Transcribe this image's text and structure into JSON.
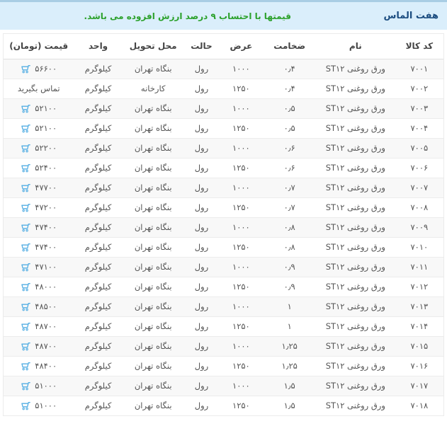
{
  "header": {
    "brand": "هفت الماس",
    "notice": "قیمتها با احتساب ۹ درصد ارزش افزوده می باشد."
  },
  "colors": {
    "topbar_bg": "#daeefb",
    "topbar_border": "#a9cde4",
    "brand_text": "#1c4d80",
    "notice_text": "#2ba12b",
    "cart_icon": "#54aee3",
    "stripe_row": "#f8f8f8"
  },
  "icons": {
    "cart": "cart-icon"
  },
  "table": {
    "columns": [
      {
        "key": "code",
        "label": "کد کالا"
      },
      {
        "key": "name",
        "label": "نام"
      },
      {
        "key": "thickness",
        "label": "ضخامت"
      },
      {
        "key": "width",
        "label": "عرض"
      },
      {
        "key": "state",
        "label": "حالت"
      },
      {
        "key": "delivery",
        "label": "محل تحویل"
      },
      {
        "key": "unit",
        "label": "واحد"
      },
      {
        "key": "price",
        "label": "قیمت (تومان)"
      }
    ],
    "rows": [
      {
        "code": "۷۰۰۱",
        "name": "ورق روغنی ST۱۲",
        "thickness": "۰٫۴",
        "width": "۱۰۰۰",
        "state": "رول",
        "delivery": "بنگاه تهران",
        "unit": "کیلوگرم",
        "price": "۵۶۶۰۰",
        "has_cart": true
      },
      {
        "code": "۷۰۰۲",
        "name": "ورق روغنی ST۱۲",
        "thickness": "۰٫۴",
        "width": "۱۲۵۰",
        "state": "رول",
        "delivery": "کارخانه",
        "unit": "کیلوگرم",
        "price": "تماس بگیرید",
        "has_cart": false
      },
      {
        "code": "۷۰۰۳",
        "name": "ورق روغنی ST۱۲",
        "thickness": "۰٫۵",
        "width": "۱۰۰۰",
        "state": "رول",
        "delivery": "بنگاه تهران",
        "unit": "کیلوگرم",
        "price": "۵۲۱۰۰",
        "has_cart": true
      },
      {
        "code": "۷۰۰۴",
        "name": "ورق روغنی ST۱۲",
        "thickness": "۰٫۵",
        "width": "۱۲۵۰",
        "state": "رول",
        "delivery": "بنگاه تهران",
        "unit": "کیلوگرم",
        "price": "۵۲۱۰۰",
        "has_cart": true
      },
      {
        "code": "۷۰۰۵",
        "name": "ورق روغنی ST۱۲",
        "thickness": "۰٫۶",
        "width": "۱۰۰۰",
        "state": "رول",
        "delivery": "بنگاه تهران",
        "unit": "کیلوگرم",
        "price": "۵۲۲۰۰",
        "has_cart": true
      },
      {
        "code": "۷۰۰۶",
        "name": "ورق روغنی ST۱۲",
        "thickness": "۰٫۶",
        "width": "۱۲۵۰",
        "state": "رول",
        "delivery": "بنگاه تهران",
        "unit": "کیلوگرم",
        "price": "۵۲۴۰۰",
        "has_cart": true
      },
      {
        "code": "۷۰۰۷",
        "name": "ورق روغنی ST۱۲",
        "thickness": "۰٫۷",
        "width": "۱۰۰۰",
        "state": "رول",
        "delivery": "بنگاه تهران",
        "unit": "کیلوگرم",
        "price": "۴۷۷۰۰",
        "has_cart": true
      },
      {
        "code": "۷۰۰۸",
        "name": "ورق روغنی ST۱۲",
        "thickness": "۰٫۷",
        "width": "۱۲۵۰",
        "state": "رول",
        "delivery": "بنگاه تهران",
        "unit": "کیلوگرم",
        "price": "۴۷۲۰۰",
        "has_cart": true
      },
      {
        "code": "۷۰۰۹",
        "name": "ورق روغنی ST۱۲",
        "thickness": "۰٫۸",
        "width": "۱۰۰۰",
        "state": "رول",
        "delivery": "بنگاه تهران",
        "unit": "کیلوگرم",
        "price": "۴۷۴۰۰",
        "has_cart": true
      },
      {
        "code": "۷۰۱۰",
        "name": "ورق روغنی ST۱۲",
        "thickness": "۰٫۸",
        "width": "۱۲۵۰",
        "state": "رول",
        "delivery": "بنگاه تهران",
        "unit": "کیلوگرم",
        "price": "۴۷۴۰۰",
        "has_cart": true
      },
      {
        "code": "۷۰۱۱",
        "name": "ورق روغنی ST۱۲",
        "thickness": "۰٫۹",
        "width": "۱۰۰۰",
        "state": "رول",
        "delivery": "بنگاه تهران",
        "unit": "کیلوگرم",
        "price": "۴۷۱۰۰",
        "has_cart": true
      },
      {
        "code": "۷۰۱۲",
        "name": "ورق روغنی ST۱۲",
        "thickness": "۰٫۹",
        "width": "۱۲۵۰",
        "state": "رول",
        "delivery": "بنگاه تهران",
        "unit": "کیلوگرم",
        "price": "۴۸۰۰۰",
        "has_cart": true
      },
      {
        "code": "۷۰۱۳",
        "name": "ورق روغنی ST۱۲",
        "thickness": "۱",
        "width": "۱۰۰۰",
        "state": "رول",
        "delivery": "بنگاه تهران",
        "unit": "کیلوگرم",
        "price": "۴۸۵۰۰",
        "has_cart": true
      },
      {
        "code": "۷۰۱۴",
        "name": "ورق روغنی ST۱۲",
        "thickness": "۱",
        "width": "۱۲۵۰",
        "state": "رول",
        "delivery": "بنگاه تهران",
        "unit": "کیلوگرم",
        "price": "۴۸۷۰۰",
        "has_cart": true
      },
      {
        "code": "۷۰۱۵",
        "name": "ورق روغنی ST۱۲",
        "thickness": "۱٫۲۵",
        "width": "۱۰۰۰",
        "state": "رول",
        "delivery": "بنگاه تهران",
        "unit": "کیلوگرم",
        "price": "۴۸۷۰۰",
        "has_cart": true
      },
      {
        "code": "۷۰۱۶",
        "name": "ورق روغنی ST۱۲",
        "thickness": "۱٫۲۵",
        "width": "۱۲۵۰",
        "state": "رول",
        "delivery": "بنگاه تهران",
        "unit": "کیلوگرم",
        "price": "۴۸۴۰۰",
        "has_cart": true
      },
      {
        "code": "۷۰۱۷",
        "name": "ورق روغنی ST۱۲",
        "thickness": "۱٫۵",
        "width": "۱۰۰۰",
        "state": "رول",
        "delivery": "بنگاه تهران",
        "unit": "کیلوگرم",
        "price": "۵۱۰۰۰",
        "has_cart": true
      },
      {
        "code": "۷۰۱۸",
        "name": "ورق روغنی ST۱۲",
        "thickness": "۱٫۵",
        "width": "۱۲۵۰",
        "state": "رول",
        "delivery": "بنگاه تهران",
        "unit": "کیلوگرم",
        "price": "۵۱۰۰۰",
        "has_cart": true
      }
    ]
  }
}
